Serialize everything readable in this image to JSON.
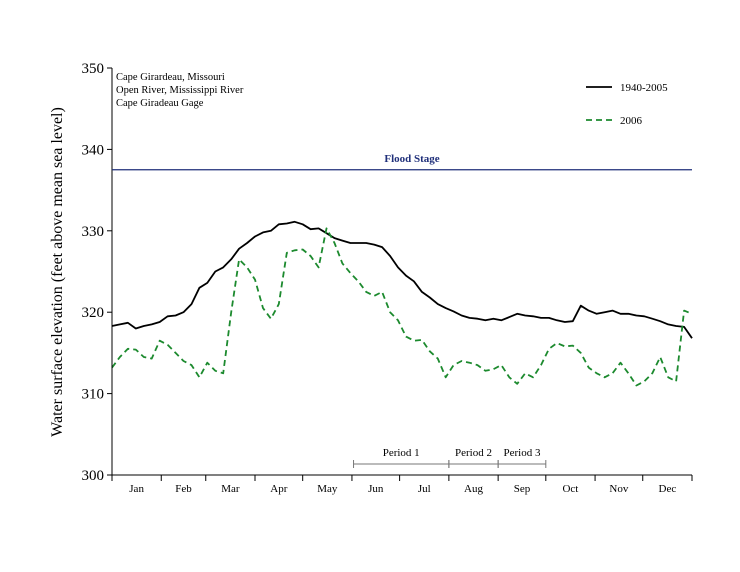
{
  "chart_data": {
    "type": "line",
    "ylabel": "Water surface elevation (feet above mean sea level)",
    "ylim": [
      300,
      350
    ],
    "yticks": [
      300,
      310,
      320,
      330,
      340,
      350
    ],
    "xlim": [
      0,
      365
    ],
    "months": [
      "Jan",
      "Feb",
      "Mar",
      "Apr",
      "May",
      "Jun",
      "Jul",
      "Aug",
      "Sep",
      "Oct",
      "Nov",
      "Dec"
    ],
    "month_starts": [
      0,
      31,
      59,
      90,
      120,
      151,
      181,
      212,
      243,
      273,
      304,
      334
    ],
    "site_text": [
      "Cape Girardeau, Missouri",
      "Open River, Mississippi River",
      "Cape Giradeau Gage"
    ],
    "flood_stage": {
      "label": "Flood Stage",
      "value": 337.5,
      "color": "#1f2f7a"
    },
    "legend_position": "top-right",
    "series": [
      {
        "name": "1940-2005",
        "color": "#000000",
        "style": "solid",
        "x": [
          0,
          5,
          10,
          15,
          20,
          25,
          30,
          35,
          40,
          45,
          50,
          55,
          60,
          65,
          70,
          75,
          80,
          85,
          90,
          95,
          100,
          105,
          110,
          115,
          120,
          125,
          130,
          135,
          140,
          145,
          150,
          155,
          160,
          165,
          170,
          175,
          180,
          185,
          190,
          195,
          200,
          205,
          210,
          215,
          220,
          225,
          230,
          235,
          240,
          245,
          250,
          255,
          260,
          265,
          270,
          275,
          280,
          285,
          290,
          295,
          300,
          305,
          310,
          315,
          320,
          325,
          330,
          335,
          340,
          345,
          350,
          355,
          360,
          365
        ],
        "y": [
          318.3,
          318.5,
          318.7,
          318.0,
          318.3,
          318.5,
          318.8,
          319.5,
          319.6,
          320.0,
          321.0,
          323.0,
          323.6,
          325.0,
          325.5,
          326.5,
          327.8,
          328.5,
          329.3,
          329.8,
          330.0,
          330.8,
          330.9,
          331.1,
          330.8,
          330.2,
          330.3,
          329.7,
          329.1,
          328.8,
          328.5,
          328.5,
          328.5,
          328.3,
          328.0,
          326.9,
          325.5,
          324.5,
          323.8,
          322.5,
          321.8,
          321.0,
          320.5,
          320.1,
          319.6,
          319.3,
          319.2,
          319.0,
          319.2,
          319.0,
          319.4,
          319.8,
          319.6,
          319.5,
          319.3,
          319.3,
          319.0,
          318.8,
          318.9,
          320.8,
          320.2,
          319.8,
          320.0,
          320.2,
          319.8,
          319.8,
          319.6,
          319.5,
          319.2,
          318.9,
          318.5,
          318.3,
          318.2,
          316.8
        ]
      },
      {
        "name": "2006",
        "color": "#1c8a2e",
        "style": "dashed",
        "x": [
          0,
          5,
          10,
          15,
          20,
          25,
          30,
          35,
          40,
          45,
          50,
          55,
          60,
          65,
          70,
          75,
          80,
          85,
          90,
          95,
          100,
          105,
          110,
          115,
          120,
          125,
          130,
          135,
          140,
          145,
          150,
          155,
          160,
          165,
          170,
          175,
          180,
          185,
          190,
          195,
          200,
          205,
          210,
          215,
          220,
          225,
          230,
          235,
          240,
          245,
          250,
          255,
          260,
          265,
          270,
          275,
          280,
          285,
          290,
          295,
          300,
          305,
          310,
          315,
          320,
          325,
          330,
          335,
          340,
          345,
          350,
          355,
          360,
          365
        ],
        "y": [
          313.2,
          314.5,
          315.5,
          315.4,
          314.5,
          314.3,
          316.5,
          316.0,
          315.0,
          314.0,
          313.5,
          312.0,
          313.8,
          312.8,
          312.5,
          320.0,
          326.5,
          325.5,
          324.0,
          320.5,
          319.2,
          321.0,
          327.3,
          327.6,
          327.7,
          326.9,
          325.5,
          330.3,
          328.5,
          326.0,
          324.8,
          323.8,
          322.5,
          322.0,
          322.5,
          320.0,
          319.0,
          317.0,
          316.5,
          316.6,
          315.2,
          314.3,
          312.0,
          313.5,
          314.0,
          313.8,
          313.5,
          312.8,
          313.0,
          313.5,
          312.0,
          311.2,
          312.5,
          312.0,
          313.5,
          315.5,
          316.2,
          315.8,
          315.9,
          315.0,
          313.2,
          312.5,
          312.0,
          312.5,
          313.8,
          312.5,
          311.0,
          311.5,
          312.5,
          314.5,
          312.0,
          311.5,
          320.2,
          319.8
        ]
      }
    ],
    "periods": [
      {
        "label": "Period 1",
        "start": 152,
        "end": 212
      },
      {
        "label": "Period 2",
        "start": 212,
        "end": 243
      },
      {
        "label": "Period 3",
        "start": 243,
        "end": 273
      }
    ]
  }
}
